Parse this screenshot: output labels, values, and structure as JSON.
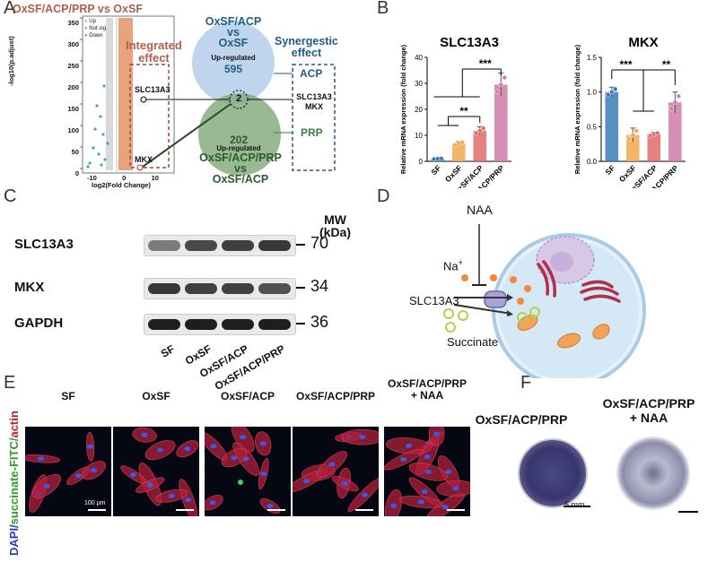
{
  "panels": {
    "a": "A",
    "b": "B",
    "c": "C",
    "d": "D",
    "e": "E",
    "f": "F"
  },
  "colors": {
    "up": "#e8a37e",
    "notsig": "#9a9a9a",
    "down": "#3ea6cf",
    "brown": "#b0604a",
    "teal": "#1f5e80",
    "green": "#3e7a46",
    "sf": "#3a7ab8",
    "oxsf": "#f0a84f",
    "acp": "#e26b6b",
    "prp": "#d07aa8"
  },
  "panelA": {
    "volcano_title": "OxSF/ACP/PRP vs OxSF",
    "legend": [
      "Up",
      "Not sig",
      "Down"
    ],
    "ylabel": "-log10(p.adjust)",
    "xlabel": "log2(Fold Change)",
    "yticks": [
      "350",
      "300",
      "250",
      "200",
      "150",
      "100",
      "50",
      "0"
    ],
    "xticks": [
      "-10",
      "0",
      "10"
    ],
    "integrated": [
      "Integrated",
      "effect"
    ],
    "gene1": "SLC13A3",
    "gene2": "MKX",
    "venn_top_title": [
      "OxSF/ACP",
      "vs",
      "OxSF"
    ],
    "venn_top_sub": "Up-regulated",
    "venn_top_count": "595",
    "venn_mid": "2",
    "venn_bot_count": "202",
    "venn_bot_sub": "Up-regulated",
    "venn_bot_title": [
      "OxSF/ACP/PRP",
      "vs",
      "OxSF/ACP"
    ],
    "synergy": [
      "Synergestic",
      "effect"
    ],
    "acp": "ACP",
    "genes": [
      "SLC13A3",
      "MKX"
    ],
    "prp": "PRP"
  },
  "chart_data": [
    {
      "type": "bar",
      "title": "SLC13A3",
      "ylabel": "Relative mRNA expression (fold change)",
      "categories": [
        "SF",
        "OxSF",
        "OxSF/ACP",
        "OxSF/ACP/PRP"
      ],
      "values": [
        1,
        6.8,
        11.8,
        29.5
      ],
      "errors": [
        0.2,
        0.8,
        1.5,
        4.5
      ],
      "ylim": [
        0,
        40
      ],
      "yticks": [
        0,
        10,
        20,
        30,
        40
      ],
      "significance": [
        {
          "label": "***"
        },
        {
          "label": "**"
        }
      ]
    },
    {
      "type": "bar",
      "title": "MKX",
      "ylabel": "Relative mRNA expression (fold change)",
      "categories": [
        "SF",
        "OxSF",
        "OxSF/ACP",
        "OxSF/ACP/PRP"
      ],
      "values": [
        1.0,
        0.38,
        0.39,
        0.85
      ],
      "errors": [
        0.07,
        0.1,
        0.03,
        0.15
      ],
      "ylim": [
        0,
        1.5
      ],
      "yticks": [
        0.0,
        0.5,
        1.0,
        1.5
      ],
      "significance": [
        {
          "label": "***"
        },
        {
          "label": "**"
        }
      ]
    }
  ],
  "panelC": {
    "mw_header": [
      "MW",
      "(kDa)"
    ],
    "rows": [
      {
        "protein": "SLC13A3",
        "mw": "70",
        "intensity": [
          0.45,
          0.75,
          0.8,
          0.85
        ]
      },
      {
        "protein": "MKX",
        "mw": "34",
        "intensity": [
          0.85,
          0.8,
          0.8,
          0.7
        ]
      },
      {
        "protein": "GAPDH",
        "mw": "36",
        "intensity": [
          1,
          1,
          1,
          1
        ]
      }
    ],
    "lanes": [
      "SF",
      "OxSF",
      "OxSF/ACP",
      "OxSF/ACP/PRP"
    ]
  },
  "panelD": {
    "naa": "NAA",
    "na": "Na",
    "na_sup": "+",
    "transporter": "SLC13A3",
    "substrate": "Succinate"
  },
  "panelE": {
    "stain_dapi": "DAPI/",
    "stain_fitc": "succinate-FITC/",
    "stain_actin": "actin",
    "groups": [
      "SF",
      "OxSF",
      "OxSF/ACP",
      "OxSF/ACP/PRP",
      "OxSF/ACP/PRP\n+ NAA"
    ],
    "scale": "100 μm"
  },
  "panelF": {
    "groups": [
      "OxSF/ACP/PRP",
      "OxSF/ACP/PRP\n+ NAA"
    ],
    "scale": "5 mm"
  }
}
